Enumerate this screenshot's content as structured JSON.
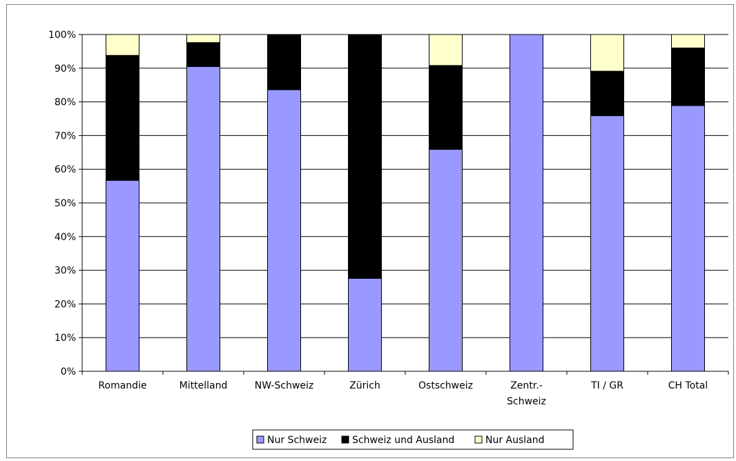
{
  "chart_data": {
    "type": "bar",
    "stacked": true,
    "categories": [
      "Romandie",
      "Mittelland",
      "NW-Schweiz",
      "Zürich",
      "Ostschweiz",
      "Zentr.-\nSchweiz",
      "TI / GR",
      "CH Total"
    ],
    "series": [
      {
        "name": "Nur Schweiz",
        "color": "#9999ff",
        "values": [
          56.7,
          90.5,
          83.6,
          27.6,
          65.9,
          100,
          75.9,
          78.9
        ]
      },
      {
        "name": "Schweiz und Ausland",
        "color": "#000000",
        "values": [
          37.1,
          7.1,
          16.4,
          72.4,
          24.9,
          0,
          13.2,
          17.1
        ]
      },
      {
        "name": "Nur Ausland",
        "color": "#ffffcc",
        "values": [
          6.2,
          2.4,
          0,
          0,
          9.2,
          0,
          10.9,
          4.0
        ]
      }
    ],
    "yticks": [
      "0%",
      "10%",
      "20%",
      "30%",
      "40%",
      "50%",
      "60%",
      "70%",
      "80%",
      "90%",
      "100%"
    ],
    "ylim": [
      0,
      100
    ],
    "grid": true,
    "legend_position": "bottom",
    "title": "",
    "xlabel": "",
    "ylabel": ""
  }
}
